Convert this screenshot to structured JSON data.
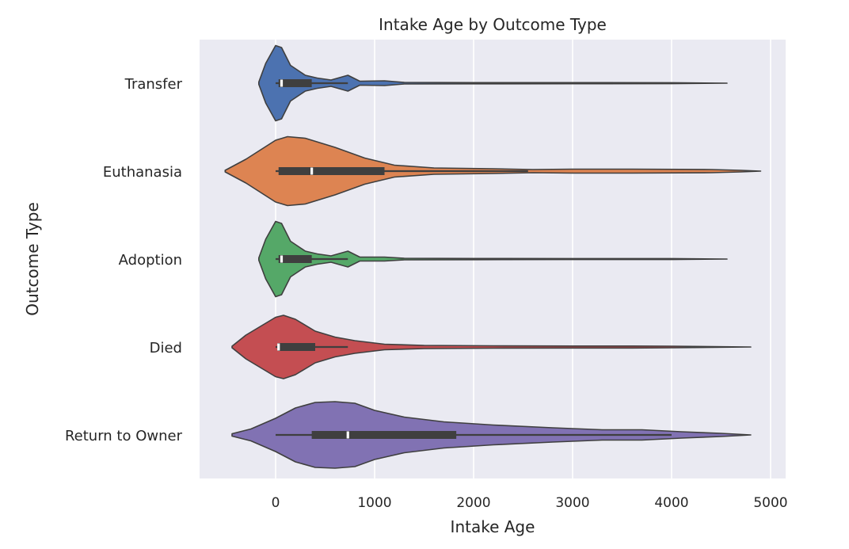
{
  "chart_data": {
    "type": "violin",
    "title": "Intake Age by Outcome Type",
    "xlabel": "Intake Age",
    "ylabel": "Outcome Type",
    "xlim": [
      -750,
      5150
    ],
    "xticks": [
      0,
      1000,
      2000,
      3000,
      4000,
      5000
    ],
    "xtick_labels": [
      "0",
      "1000",
      "2000",
      "3000",
      "4000",
      "5000"
    ],
    "grid": true,
    "categories": [
      "Transfer",
      "Euthanasia",
      "Adoption",
      "Died",
      "Return to Owner"
    ],
    "colors": [
      "#4c72b0",
      "#dd8452",
      "#55a868",
      "#c44e52",
      "#8172b3"
    ],
    "series": [
      {
        "category": "Transfer",
        "whisker": [
          0,
          730
        ],
        "q1": 30,
        "median": 60,
        "q3": 365,
        "density_profile": [
          [
            -170,
            0.03
          ],
          [
            -100,
            0.5
          ],
          [
            0,
            0.95
          ],
          [
            60,
            0.9
          ],
          [
            150,
            0.45
          ],
          [
            300,
            0.2
          ],
          [
            420,
            0.13
          ],
          [
            560,
            0.08
          ],
          [
            730,
            0.2
          ],
          [
            850,
            0.05
          ],
          [
            1100,
            0.06
          ],
          [
            1300,
            0.02
          ],
          [
            2000,
            0.015
          ],
          [
            3000,
            0.013
          ],
          [
            4000,
            0.012
          ],
          [
            4560,
            0.0
          ]
        ]
      },
      {
        "category": "Euthanasia",
        "whisker": [
          0,
          2550
        ],
        "q1": 30,
        "median": 365,
        "q3": 1100,
        "density_profile": [
          [
            -510,
            0.02
          ],
          [
            -300,
            0.3
          ],
          [
            0,
            0.78
          ],
          [
            120,
            0.87
          ],
          [
            300,
            0.83
          ],
          [
            600,
            0.6
          ],
          [
            900,
            0.33
          ],
          [
            1200,
            0.15
          ],
          [
            1600,
            0.08
          ],
          [
            2200,
            0.06
          ],
          [
            2600,
            0.04
          ],
          [
            3000,
            0.05
          ],
          [
            3600,
            0.05
          ],
          [
            4400,
            0.04
          ],
          [
            4700,
            0.02
          ],
          [
            4900,
            0.0
          ]
        ]
      },
      {
        "category": "Adoption",
        "whisker": [
          0,
          730
        ],
        "q1": 30,
        "median": 60,
        "q3": 365,
        "density_profile": [
          [
            -170,
            0.03
          ],
          [
            -100,
            0.5
          ],
          [
            0,
            0.95
          ],
          [
            60,
            0.9
          ],
          [
            150,
            0.45
          ],
          [
            300,
            0.2
          ],
          [
            420,
            0.13
          ],
          [
            560,
            0.08
          ],
          [
            730,
            0.2
          ],
          [
            850,
            0.05
          ],
          [
            1100,
            0.05
          ],
          [
            1300,
            0.02
          ],
          [
            2000,
            0.015
          ],
          [
            3000,
            0.013
          ],
          [
            4000,
            0.012
          ],
          [
            4560,
            0.0
          ]
        ]
      },
      {
        "category": "Died",
        "whisker": [
          0,
          730
        ],
        "q1": 20,
        "median": 30,
        "q3": 400,
        "density_profile": [
          [
            -440,
            0.02
          ],
          [
            -300,
            0.3
          ],
          [
            0,
            0.75
          ],
          [
            80,
            0.8
          ],
          [
            200,
            0.7
          ],
          [
            400,
            0.4
          ],
          [
            600,
            0.25
          ],
          [
            800,
            0.16
          ],
          [
            1100,
            0.07
          ],
          [
            1500,
            0.04
          ],
          [
            2200,
            0.03
          ],
          [
            3000,
            0.025
          ],
          [
            3600,
            0.025
          ],
          [
            4000,
            0.02
          ],
          [
            4800,
            0.0
          ]
        ]
      },
      {
        "category": "Return to Owner",
        "whisker": [
          0,
          4000
        ],
        "q1": 365,
        "median": 730,
        "q3": 1825,
        "density_profile": [
          [
            -440,
            0.03
          ],
          [
            -250,
            0.15
          ],
          [
            0,
            0.42
          ],
          [
            200,
            0.68
          ],
          [
            400,
            0.82
          ],
          [
            600,
            0.84
          ],
          [
            800,
            0.8
          ],
          [
            1000,
            0.62
          ],
          [
            1300,
            0.45
          ],
          [
            1700,
            0.33
          ],
          [
            2200,
            0.25
          ],
          [
            2800,
            0.18
          ],
          [
            3300,
            0.13
          ],
          [
            3700,
            0.13
          ],
          [
            4100,
            0.08
          ],
          [
            4500,
            0.04
          ],
          [
            4800,
            0.0
          ]
        ]
      }
    ]
  }
}
